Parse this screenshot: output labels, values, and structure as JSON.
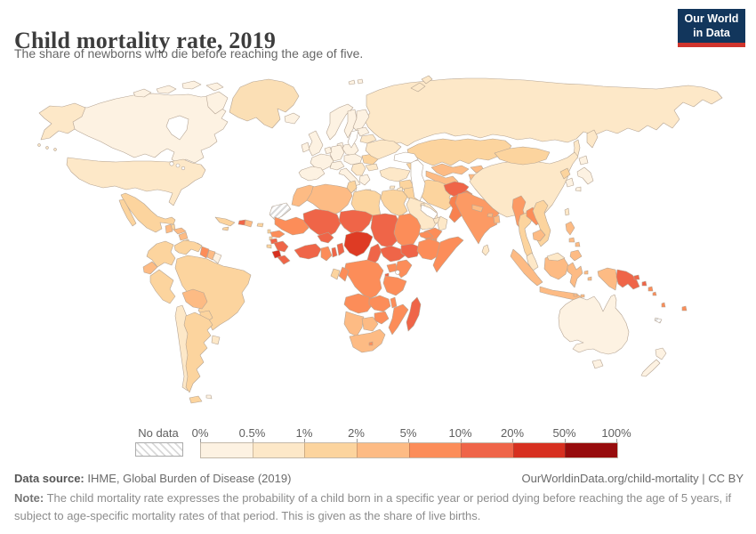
{
  "header": {
    "title": "Child mortality rate, 2019",
    "subtitle": "The share of newborns who die before reaching the age of five.",
    "logo_line1": "Our World",
    "logo_line2": "in Data",
    "logo_bg": "#12365c",
    "logo_accent": "#d0342c"
  },
  "legend": {
    "no_data_label": "No data"
  },
  "footer": {
    "source_label": "Data source:",
    "source_text": " IHME, Global Burden of Disease (2019)",
    "attribution": "OurWorldinData.org/child-mortality | CC BY",
    "note_label": "Note:",
    "note_text": " The child mortality rate expresses the probability of a child born in a specific year or period dying before reaching the age of 5 years, if subject to age-specific mortality rates of that period. This is given as the share of live births."
  },
  "chart_data": {
    "type": "heatmap",
    "subtype": "choropleth-world-map",
    "title": "Child mortality rate, 2019",
    "unit": "%",
    "bin_edges": [
      "0%",
      "0.5%",
      "1%",
      "2%",
      "5%",
      "10%",
      "20%",
      "50%",
      "100%"
    ],
    "bin_colors": [
      "#fdf2e2",
      "#fde8c8",
      "#fcd49e",
      "#fdbb84",
      "#fc8d59",
      "#ef6548",
      "#d7301f",
      "#970c0c"
    ],
    "no_data": {
      "label": "No data",
      "hatch_color": "#d9d9d9"
    },
    "legend_position": "bottom",
    "region_bins": {
      "canada": 0,
      "arctic1": 0,
      "arctic2": 0,
      "arctic3": 0,
      "arctic4": 0,
      "baffin": 0,
      "alaska": 1,
      "aleutian1": 1,
      "aleutian2": 1,
      "aleutian3": 1,
      "greenland": "#fbdfb5",
      "iceland": 0,
      "usa": 1,
      "mexico": 2,
      "baja": 2,
      "belize": 2,
      "guatemala": 3,
      "honduras": 3,
      "nicaragua": 3,
      "costarica": 2,
      "panama": 2,
      "cuba": 2,
      "jamaica": 2,
      "haiti": 5,
      "domrep": 3,
      "puertorico": 2,
      "antilles1": 2,
      "antilles2": 2,
      "trinidad": 2,
      "colombia": 2,
      "venezuela": 2,
      "guyana": 4,
      "suriname": 3,
      "frguiana": 0,
      "ecuador": 3,
      "peru": 2,
      "brazil": 2,
      "bolivia": 3,
      "paraguay": 2,
      "chile": 1,
      "argentina": 2,
      "tdf": 2,
      "uruguay": 1,
      "falkland": 0,
      "norway": 0,
      "sweden": 0,
      "finland": 0,
      "denmark": 0,
      "uk": 0,
      "ireland": 0,
      "france": 0,
      "iberia": 0,
      "germany": 0,
      "lowcountries": 0,
      "poland": 0,
      "centraleurope": 0,
      "alpine": 0,
      "italy": 0,
      "sicily": 0,
      "balkans": 1,
      "greece": 0,
      "crete": 0,
      "romania": 2,
      "bulgaria": 1,
      "ukraine": 1,
      "belarus": 1,
      "baltics": 0,
      "russia": 1,
      "kamchatka": 1,
      "sakhalin": 1,
      "novaya1": 1,
      "novaya2": 1,
      "svalbard1": 0,
      "svalbard2": 0,
      "kazakhstan": 2,
      "uzbekistan": 3,
      "turkmenistan": 3,
      "kyrgyzstan": 3,
      "tajikistan": 3,
      "caucasus": 2,
      "turkey": 1,
      "cyprus": 1,
      "syria": 2,
      "levant": 1,
      "iraq": 2,
      "saudi": 1,
      "kuwait": 1,
      "uae": 1,
      "oman": 1,
      "yemen": 4,
      "iran": 2,
      "afghanistan": 5,
      "pakistan": "#f8814f",
      "india": "#fc9a64",
      "srilanka": 1,
      "nepal": 3,
      "bhutan": 3,
      "bangladesh": 3,
      "china": 1,
      "mongolia": 2,
      "nkorea": 2,
      "skorea": 0,
      "hokkaido": 0,
      "honshu": 0,
      "kyushu": 0,
      "taiwan": 1,
      "hainan": 1,
      "myanmar": "#fc9a64",
      "thailand": 2,
      "laos": 4,
      "vietnam": 2,
      "cambodia": 3,
      "malaysia": 1,
      "borneomy": 1,
      "sumatra": 3,
      "java": 3,
      "borneo": 3,
      "sulawesi": 3,
      "maluku1": 3,
      "maluku2": 3,
      "lombok1": 3,
      "lombok2": 3,
      "timor": 3,
      "wpapua": 3,
      "png": 5,
      "newbritain": 5,
      "bougainville": 5,
      "solomon1": 4,
      "solomon2": 4,
      "vanuatu": 4,
      "fiji": 4,
      "newcaledonia": "hatch",
      "luzon": 3,
      "visayas1": 3,
      "visayas2": 3,
      "mindanao": 3,
      "morocco": 3,
      "wsahara": "hatch",
      "algeria": 3,
      "tunisia": 2,
      "libya": 2,
      "egypt": 2,
      "mauritania": 4,
      "senegal": 4,
      "guineabissau": 5,
      "guinea": 5,
      "sierraleone": 6,
      "liberia": 5,
      "mali": 5,
      "burkina": 5,
      "ivorycoast": 5,
      "ghana": 4,
      "togo": 5,
      "benin": 5,
      "niger": 5,
      "nigeria": "#de3b24",
      "cameroon": 5,
      "chad": 5,
      "car": 5,
      "sudan": 4,
      "southsudan": 5,
      "eritrea": 4,
      "djibouti": 4,
      "ethiopia": 4,
      "somalia": 4,
      "uganda": 4,
      "kenya": 4,
      "rwanda": 5,
      "burundi": 5,
      "drc": 4,
      "congo": 4,
      "gabon": 2,
      "tanzania": 4,
      "angola": 4,
      "zambia": 4,
      "malawi": 4,
      "mozambique": 4,
      "zimbabwe": 4,
      "namibia": 3,
      "botswana": 3,
      "southafrica": 3,
      "lesotho": 4,
      "madagascar": 5,
      "australia": 0,
      "tasmania": 0,
      "nznorth": 0,
      "nzsouth": 0
    }
  },
  "map": {
    "ocean": "#ffffff",
    "border_color": "#b5a493"
  }
}
